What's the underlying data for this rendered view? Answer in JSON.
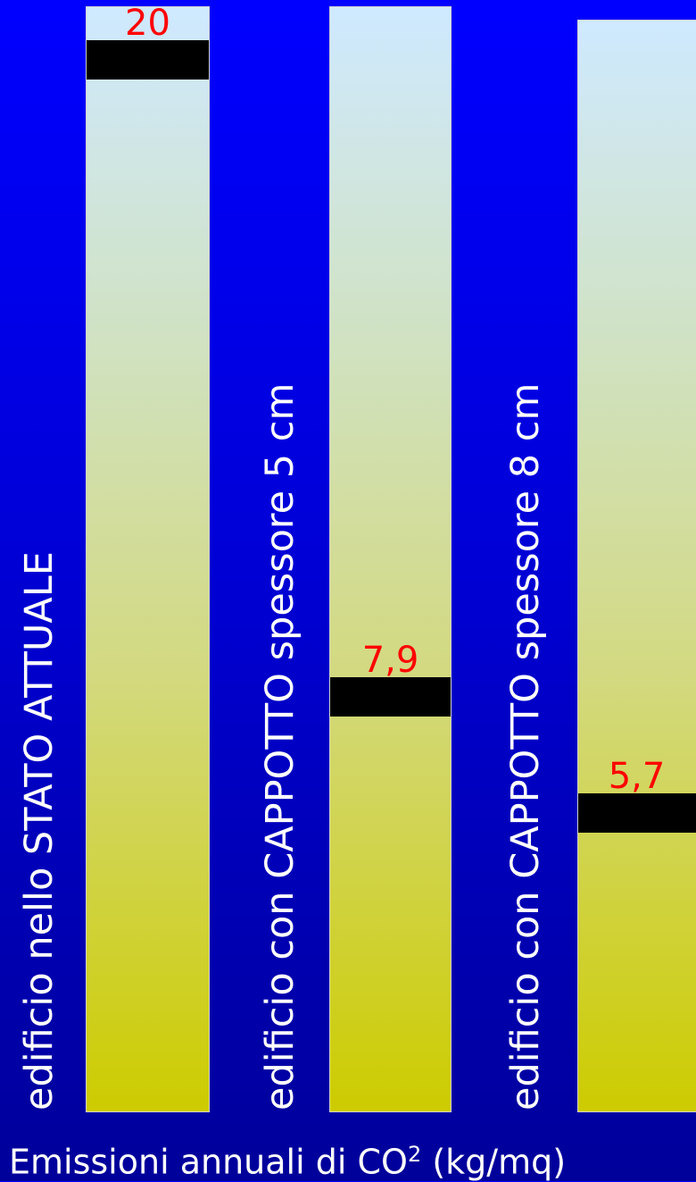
{
  "chart_data": {
    "type": "bar",
    "categories": [
      "edificio nello STATO ATTUALE",
      "edificio con CAPPOTTO spessore 5 cm",
      "edificio con CAPPOTTO spessore 8 cm"
    ],
    "values": [
      20,
      7.9,
      5.7
    ],
    "value_labels": [
      "20",
      "7,9",
      "5,7"
    ],
    "caption": "Emissioni annuali di CO",
    "caption_superscript": "2",
    "caption_units": "(kg/mq)",
    "ylim": [
      0,
      21
    ],
    "colors": {
      "background": "#0000ff",
      "marker": "#000000",
      "value_label": "#ff0000",
      "text": "#ffffff"
    }
  }
}
